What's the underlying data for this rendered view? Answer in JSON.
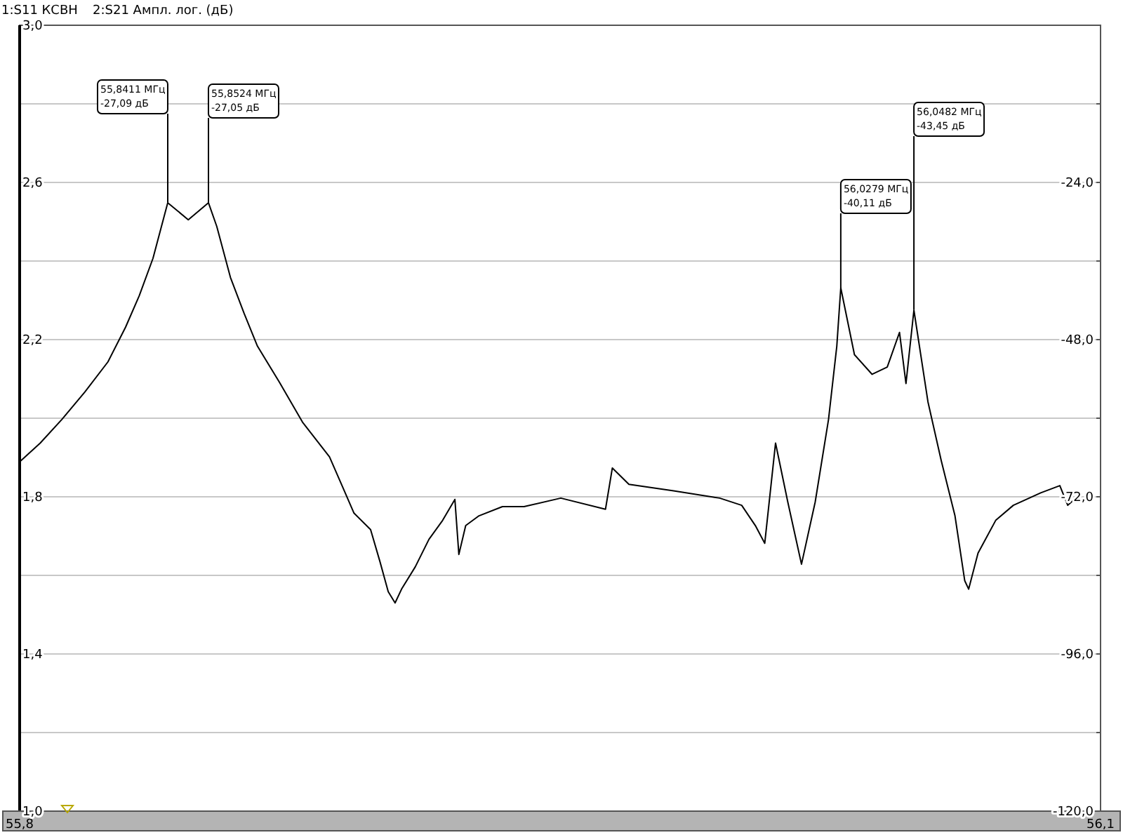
{
  "chart_data": {
    "type": "line",
    "title": "1:S11 КСВН",
    "subtitle": "2:S21 Ампл. лог. (дБ)",
    "xlim": [
      55.8,
      56.1
    ],
    "xticks": [
      {
        "value": 55.8,
        "label": "55,8"
      },
      {
        "value": 56.1,
        "label": "56,1"
      }
    ],
    "ylim": [
      1.0,
      3.0
    ],
    "yticks": [
      {
        "value": 1.0,
        "label": "1,0"
      },
      {
        "value": 1.2,
        "label": null
      },
      {
        "value": 1.4,
        "label": "1,4"
      },
      {
        "value": 1.6,
        "label": null
      },
      {
        "value": 1.8,
        "label": "1,8"
      },
      {
        "value": 2.0,
        "label": null
      },
      {
        "value": 2.2,
        "label": "2,2"
      },
      {
        "value": 2.4,
        "label": null
      },
      {
        "value": 2.6,
        "label": "2,6"
      },
      {
        "value": 2.8,
        "label": null
      },
      {
        "value": 3.0,
        "label": "3,0"
      }
    ],
    "y2lim": [
      -120,
      0
    ],
    "y2ticks": [
      {
        "value": -120,
        "label": "-120,0"
      },
      {
        "value": -108,
        "label": null
      },
      {
        "value": -96,
        "label": "-96,0"
      },
      {
        "value": -84,
        "label": null
      },
      {
        "value": -72,
        "label": "-72,0"
      },
      {
        "value": -60,
        "label": null
      },
      {
        "value": -48,
        "label": "-48,0"
      },
      {
        "value": -36,
        "label": null
      },
      {
        "value": -24,
        "label": "-24,0"
      },
      {
        "value": -12,
        "label": null
      },
      {
        "value": 0,
        "label": null
      }
    ],
    "grid": "y",
    "series": [
      {
        "axis": "y2",
        "color": "#000000",
        "x": [
          55.8003,
          55.8057,
          55.8117,
          55.8181,
          55.8245,
          55.8294,
          55.8332,
          55.837,
          55.8411,
          55.8468,
          55.8524,
          55.8547,
          55.8585,
          55.8623,
          55.866,
          55.8721,
          55.8785,
          55.886,
          55.8898,
          55.8928,
          55.8974,
          55.9,
          55.9023,
          55.9042,
          55.906,
          55.9098,
          55.9136,
          55.9174,
          55.9208,
          55.9219,
          55.9238,
          55.9275,
          55.934,
          55.94,
          55.9502,
          55.9626,
          55.9645,
          55.9691,
          55.9815,
          55.9943,
          56.0004,
          56.0042,
          56.0068,
          56.0098,
          56.0132,
          56.017,
          56.0208,
          56.0245,
          56.0268,
          56.0279,
          56.0317,
          56.0366,
          56.0408,
          56.0442,
          56.046,
          56.0482,
          56.0521,
          56.0558,
          56.0596,
          56.0623,
          56.0634,
          56.066,
          56.0709,
          56.0758,
          56.0834,
          56.0887,
          56.0909,
          56.0947
        ],
        "values": [
          -66.5,
          -63.8,
          -60.2,
          -56.0,
          -51.4,
          -46.1,
          -41.3,
          -35.6,
          -27.1,
          -29.7,
          -27.1,
          -30.7,
          -38.5,
          -44.0,
          -49.0,
          -54.5,
          -60.6,
          -65.9,
          -70.7,
          -74.5,
          -77.0,
          -81.9,
          -86.5,
          -88.2,
          -86.1,
          -82.7,
          -78.5,
          -75.6,
          -72.4,
          -80.8,
          -76.4,
          -74.9,
          -73.5,
          -73.5,
          -72.2,
          -73.9,
          -67.6,
          -70.1,
          -71.1,
          -72.2,
          -73.3,
          -76.4,
          -79.1,
          -63.8,
          -72.8,
          -82.3,
          -72.8,
          -60.2,
          -49.0,
          -40.1,
          -50.3,
          -53.3,
          -52.2,
          -46.9,
          -54.7,
          -43.5,
          -57.5,
          -66.5,
          -74.9,
          -84.8,
          -86.1,
          -80.6,
          -75.6,
          -73.3,
          -71.4,
          -70.3,
          -73.3,
          -71.4
        ]
      }
    ],
    "annotations": [
      {
        "text": "55,8411 МГц\n-27,09 дБ",
        "x": 55.8411,
        "y": 2.549
      },
      {
        "text": "55,8524 МГц\n-27,05 дБ",
        "x": 55.8524,
        "y": 2.549
      },
      {
        "text": "56,0279 МГц\n-40,11 дБ",
        "x": 56.0279,
        "y": 2.332
      },
      {
        "text": "56,0482 МГц\n-43,45 дБ",
        "x": 56.0482,
        "y": 2.276
      }
    ]
  }
}
